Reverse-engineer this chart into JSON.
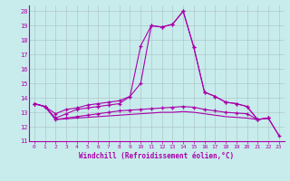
{
  "background_color": "#c8ecec",
  "line_color": "#aa00aa",
  "xlabel": "Windchill (Refroidissement éolien,°C)",
  "xlim": [
    -0.5,
    23.5
  ],
  "ylim": [
    11,
    20.4
  ],
  "xticks": [
    0,
    1,
    2,
    3,
    4,
    5,
    6,
    7,
    8,
    9,
    10,
    11,
    12,
    13,
    14,
    15,
    16,
    17,
    18,
    19,
    20,
    21,
    22,
    23
  ],
  "yticks": [
    11,
    12,
    13,
    14,
    15,
    16,
    17,
    18,
    19,
    20
  ],
  "grid_color": "#b0c8c8",
  "line1_x": [
    0,
    1,
    2,
    3,
    4,
    5,
    6,
    7,
    8,
    9,
    10,
    11,
    12,
    13,
    14,
    15,
    16,
    17,
    18,
    19,
    20,
    21,
    22
  ],
  "line1_y": [
    13.6,
    13.4,
    12.6,
    12.9,
    13.2,
    13.3,
    13.4,
    13.5,
    13.6,
    14.1,
    17.6,
    19.0,
    18.9,
    19.1,
    20.0,
    17.5,
    14.4,
    14.1,
    13.7,
    13.6,
    13.4,
    12.5,
    12.6
  ],
  "line2_x": [
    0,
    1,
    2,
    3,
    4,
    5,
    6,
    7,
    8,
    9,
    10,
    11,
    12,
    13,
    14,
    15,
    16,
    17,
    18,
    19,
    20,
    21,
    22
  ],
  "line2_y": [
    13.6,
    13.4,
    12.9,
    13.2,
    13.3,
    13.5,
    13.6,
    13.7,
    13.8,
    14.1,
    15.0,
    19.0,
    18.9,
    19.1,
    20.0,
    17.5,
    14.4,
    14.1,
    13.7,
    13.6,
    13.4,
    12.5,
    12.6
  ],
  "line3_x": [
    0,
    1,
    2,
    3,
    4,
    5,
    6,
    7,
    8,
    9,
    10,
    11,
    12,
    13,
    14,
    15,
    16,
    17,
    18,
    19,
    20,
    21,
    22,
    23
  ],
  "line3_y": [
    13.6,
    13.4,
    12.5,
    12.6,
    12.7,
    12.8,
    12.9,
    13.0,
    13.1,
    13.15,
    13.2,
    13.25,
    13.3,
    13.35,
    13.4,
    13.35,
    13.2,
    13.1,
    13.0,
    12.95,
    12.9,
    12.5,
    12.6,
    11.4
  ],
  "line4_x": [
    0,
    1,
    2,
    3,
    4,
    5,
    6,
    7,
    8,
    9,
    10,
    11,
    12,
    13,
    14,
    15,
    16,
    17,
    18,
    19,
    20,
    21,
    22,
    23
  ],
  "line4_y": [
    13.6,
    13.4,
    12.5,
    12.55,
    12.6,
    12.65,
    12.7,
    12.75,
    12.8,
    12.85,
    12.9,
    12.95,
    13.0,
    13.0,
    13.05,
    13.0,
    12.9,
    12.8,
    12.7,
    12.65,
    12.6,
    12.5,
    12.6,
    11.4
  ]
}
